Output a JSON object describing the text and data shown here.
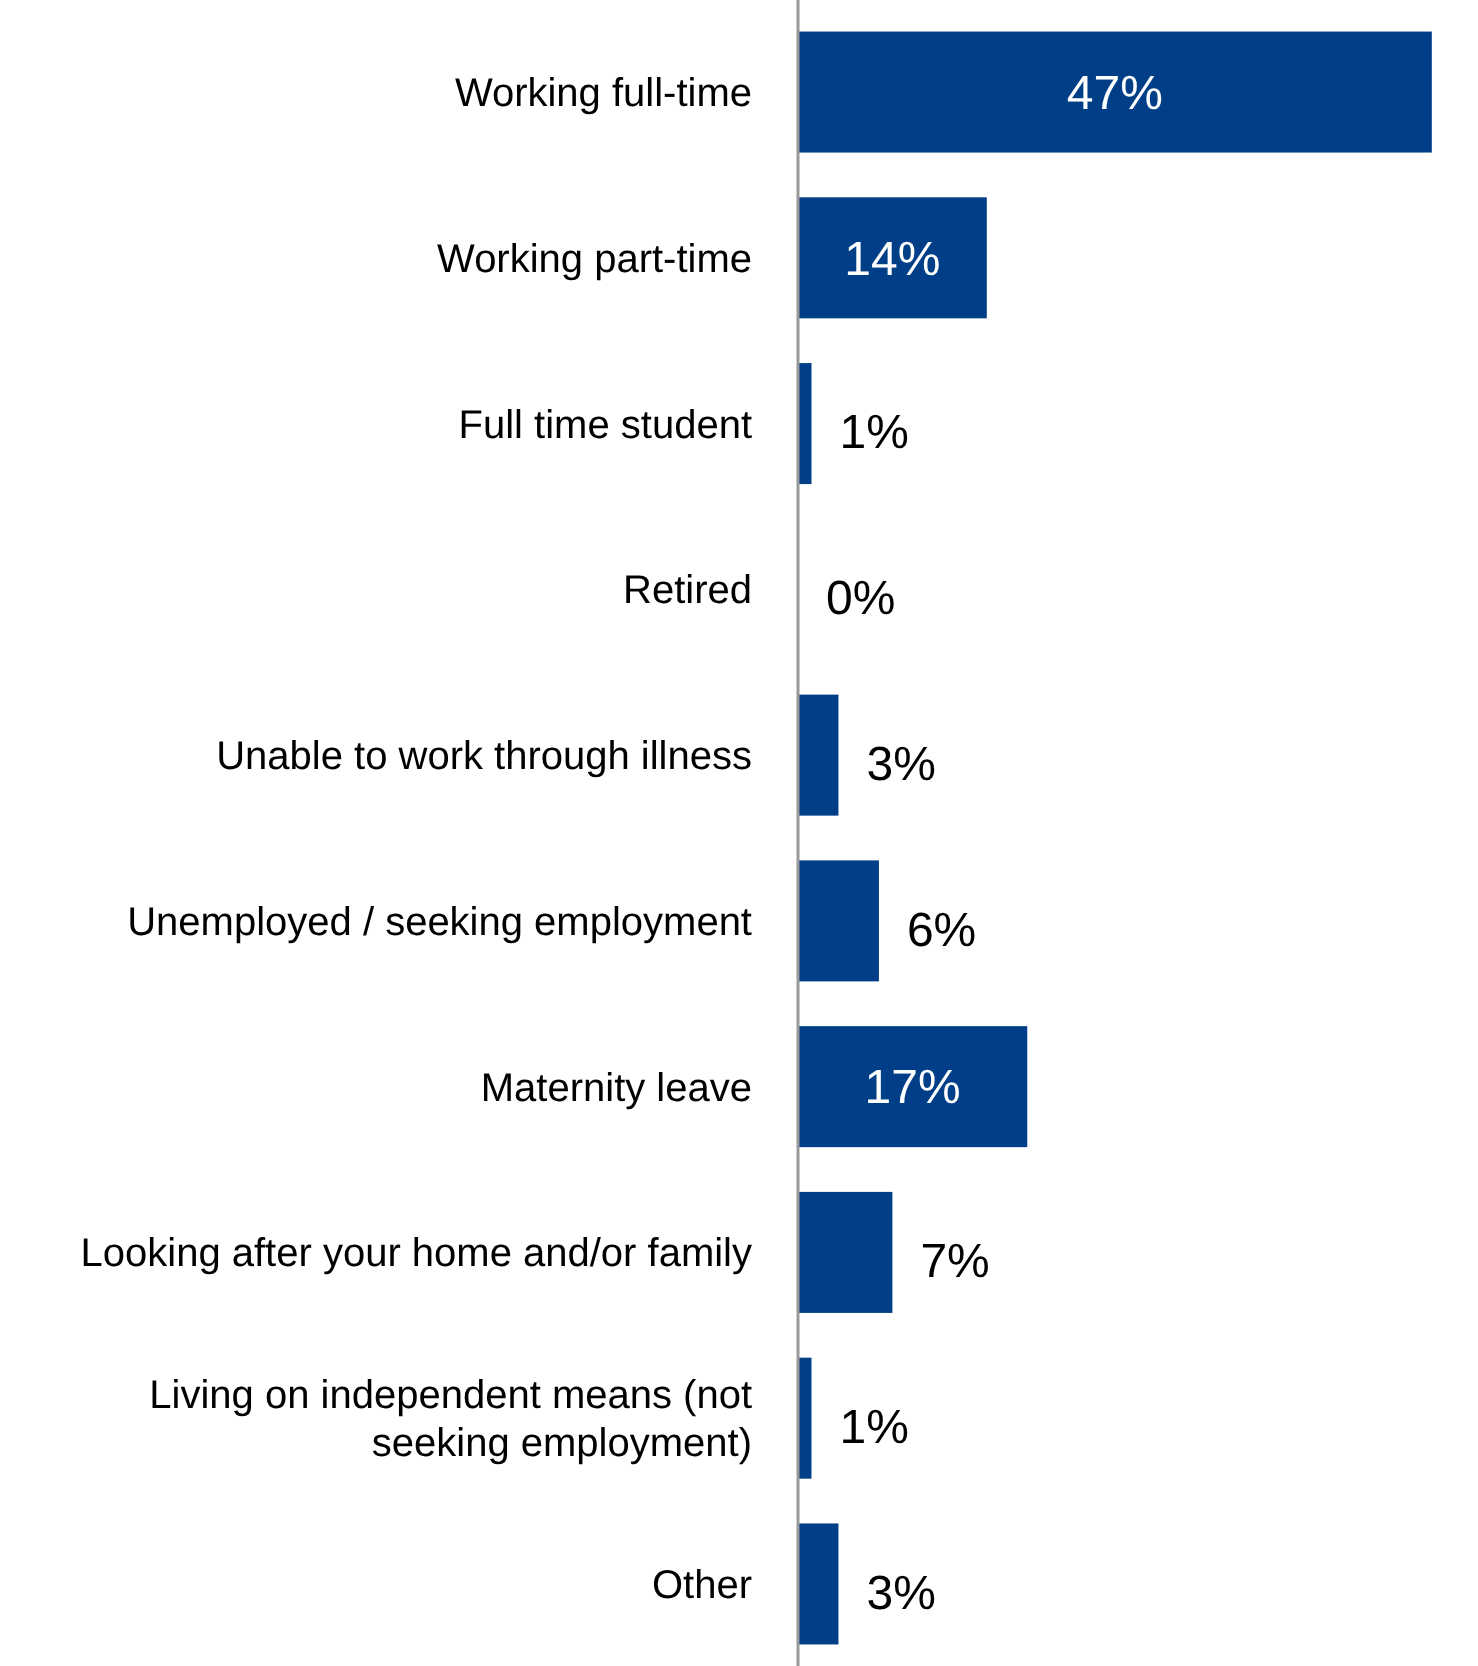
{
  "chart_data": {
    "type": "bar",
    "orientation": "horizontal",
    "categories": [
      "Working full-time",
      "Working part-time",
      "Full time student",
      "Retired",
      "Unable to work through illness",
      "Unemployed / seeking employment",
      "Maternity leave",
      "Looking after your home and/or family",
      "Living on independent means (not seeking employment)",
      "Other"
    ],
    "series": [
      {
        "color": "#003f87",
        "values": [
          47,
          14,
          1,
          0,
          3,
          6,
          17,
          7,
          1,
          3
        ],
        "value_labels": [
          "47%",
          "14%",
          "1%",
          "0%",
          "3%",
          "6%",
          "17%",
          "7%",
          "1%",
          "3%"
        ]
      }
    ]
  }
}
